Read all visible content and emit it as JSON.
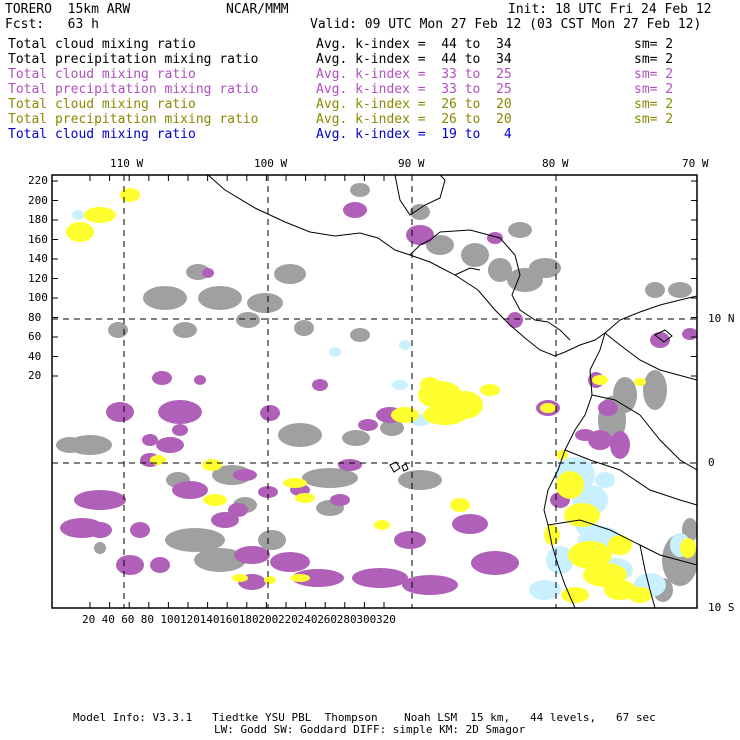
{
  "header": {
    "model": "TORERO  15km ARW",
    "org": "NCAR/MMM",
    "init": "Init: 18 UTC Fri 24 Feb 12",
    "fcst": "Fcst:   63 h",
    "valid": "Valid: 09 UTC Mon 27 Feb 12 (03 CST Mon 27 Feb 12)"
  },
  "legend": [
    {
      "field": "Total cloud mixing ratio",
      "range": "Avg. k-index =  44 to  34",
      "sm": "sm= 2",
      "color": "#000000"
    },
    {
      "field": "Total precipitation mixing ratio",
      "range": "Avg. k-index =  44 to  34",
      "sm": "sm= 2",
      "color": "#000000"
    },
    {
      "field": "Total cloud mixing ratio",
      "range": "Avg. k-index =  33 to  25",
      "sm": "sm= 2",
      "color": "#b050c0"
    },
    {
      "field": "Total precipitation mixing ratio",
      "range": "Avg. k-index =  33 to  25",
      "sm": "sm= 2",
      "color": "#b050c0"
    },
    {
      "field": "Total cloud mixing ratio",
      "range": "Avg. k-index =  26 to  20",
      "sm": "sm= 2",
      "color": "#8a8a00"
    },
    {
      "field": "Total precipitation mixing ratio",
      "range": "Avg. k-index =  26 to  20",
      "sm": "sm= 2",
      "color": "#8a8a00"
    },
    {
      "field": "Total cloud mixing ratio",
      "range": "Avg. k-index =  19 to   4",
      "sm": "",
      "color": "#0000cc"
    }
  ],
  "map": {
    "lon_labels": [
      "110 W",
      "100 W",
      "90 W",
      "80 W",
      "70 W"
    ],
    "lat_labels": [
      "10 N",
      "0",
      "10 S"
    ],
    "y_ticks": [
      "220",
      "200",
      "180",
      "160",
      "140",
      "120",
      "100",
      "80",
      "60",
      "40",
      "20"
    ],
    "x_ticks": [
      "20",
      "40",
      "60",
      "80",
      "100",
      "120",
      "140",
      "160",
      "180",
      "200",
      "220",
      "240",
      "260",
      "280",
      "300",
      "320"
    ],
    "colors": {
      "gray": "#a0a0a0",
      "purple": "#b060b8",
      "yellow": "#ffff30",
      "cyan": "#c8f0ff"
    }
  },
  "footer": {
    "line1": "Model Info: V3.3.1   Tiedtke YSU PBL  Thompson    Noah LSM  15 km,   44 levels,   67 sec",
    "line2": "LW: Godd SW: Goddard DIFF: simple KM: 2D Smagor"
  }
}
